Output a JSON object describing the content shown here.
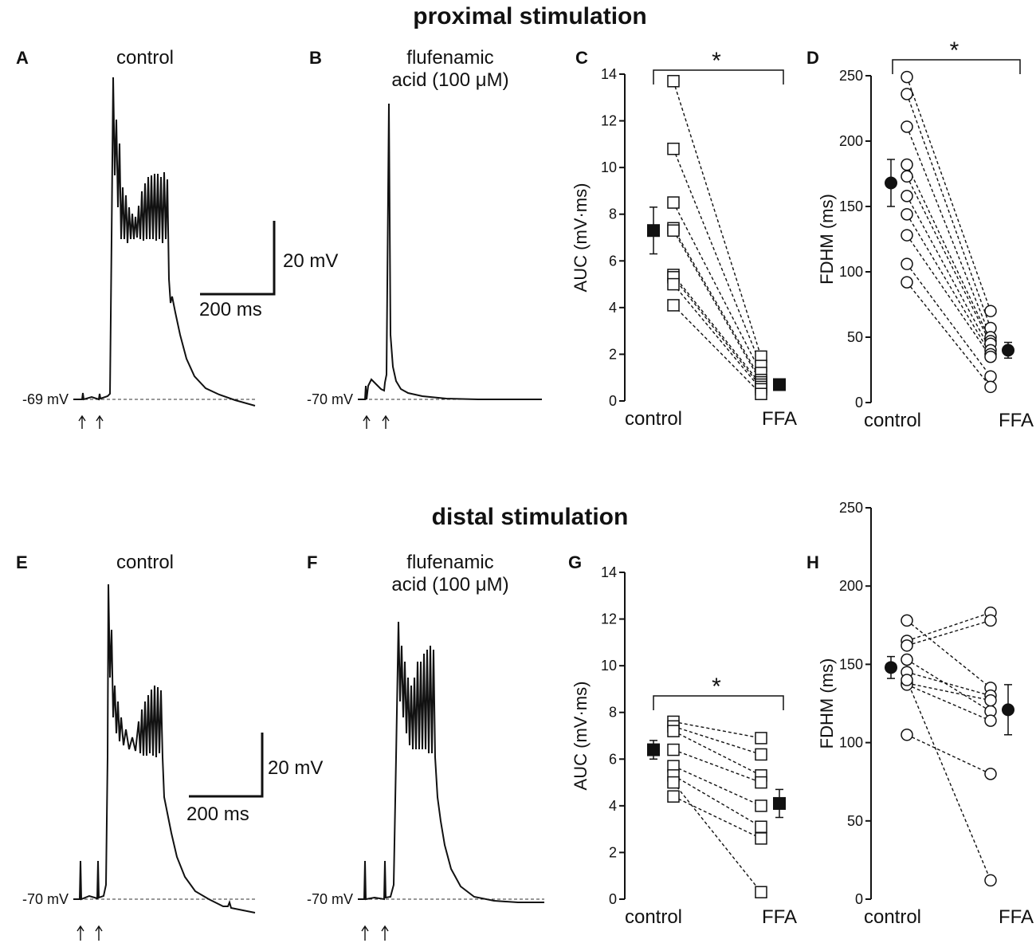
{
  "sections": {
    "proximal": {
      "title": "proximal stimulation"
    },
    "distal": {
      "title": "distal stimulation"
    }
  },
  "panels": {
    "A": {
      "label": "A",
      "condition": "control",
      "baseline": "-69 mV"
    },
    "B": {
      "label": "B",
      "condition_line1": "flufenamic",
      "condition_line2": "acid (100 μM)",
      "baseline": "-70 mV"
    },
    "E": {
      "label": "E",
      "condition": "control",
      "baseline": "-70 mV"
    },
    "F": {
      "label": "F",
      "condition_line1": "flufenamic",
      "condition_line2": "acid (100 μM)",
      "baseline": "-70 mV"
    }
  },
  "scale_bars": {
    "top": {
      "voltage": "20 mV",
      "time": "200 ms"
    },
    "bottom": {
      "voltage": "20 mV",
      "time": "200 ms"
    }
  },
  "chart_data": [
    {
      "panel": "C",
      "type": "scatter",
      "marker": "square",
      "ylabel": "AUC (mV·ms)",
      "categories": [
        "control",
        "FFA"
      ],
      "ylim": [
        0,
        14
      ],
      "yticks": [
        0,
        2,
        4,
        6,
        8,
        10,
        12,
        14
      ],
      "pairs": [
        [
          13.7,
          1.9
        ],
        [
          10.8,
          1.5
        ],
        [
          8.5,
          1.2
        ],
        [
          7.4,
          0.9
        ],
        [
          7.3,
          0.8
        ],
        [
          5.4,
          0.7
        ],
        [
          5.3,
          0.6
        ],
        [
          5.0,
          0.5
        ],
        [
          4.1,
          0.3
        ]
      ],
      "mean": {
        "control": 7.3,
        "FFA": 0.7
      },
      "err": {
        "control": 1.0,
        "FFA": 0.2
      },
      "significance": "*"
    },
    {
      "panel": "D",
      "type": "scatter",
      "marker": "circle",
      "ylabel": "FDHM (ms)",
      "categories": [
        "control",
        "FFA"
      ],
      "ylim": [
        0,
        250
      ],
      "yticks": [
        0,
        50,
        100,
        150,
        200,
        250
      ],
      "pairs": [
        [
          249,
          70
        ],
        [
          236,
          57
        ],
        [
          211,
          50
        ],
        [
          182,
          47
        ],
        [
          173,
          45
        ],
        [
          158,
          40
        ],
        [
          144,
          37
        ],
        [
          128,
          35
        ],
        [
          106,
          20
        ],
        [
          92,
          12
        ]
      ],
      "mean": {
        "control": 168,
        "FFA": 40
      },
      "err": {
        "control": 18,
        "FFA": 6
      },
      "significance": "*"
    },
    {
      "panel": "G",
      "type": "scatter",
      "marker": "square",
      "ylabel": "AUC (mV·ms)",
      "categories": [
        "control",
        "FFA"
      ],
      "ylim": [
        0,
        14
      ],
      "yticks": [
        0,
        2,
        4,
        6,
        8,
        10,
        12,
        14
      ],
      "pairs": [
        [
          7.6,
          6.9
        ],
        [
          7.4,
          6.2
        ],
        [
          7.2,
          5.3
        ],
        [
          6.4,
          5.0
        ],
        [
          5.7,
          4.0
        ],
        [
          5.3,
          3.1
        ],
        [
          5.0,
          0.3
        ],
        [
          4.4,
          2.6
        ]
      ],
      "mean": {
        "control": 6.4,
        "FFA": 4.1
      },
      "err": {
        "control": 0.4,
        "FFA": 0.6
      },
      "significance": "*"
    },
    {
      "panel": "H",
      "type": "scatter",
      "marker": "circle",
      "ylabel": "FDHM (ms)",
      "categories": [
        "control",
        "FFA"
      ],
      "ylim": [
        0,
        250
      ],
      "yticks": [
        0,
        50,
        100,
        150,
        200,
        250
      ],
      "pairs": [
        [
          178,
          135
        ],
        [
          165,
          183
        ],
        [
          162,
          178
        ],
        [
          153,
          120
        ],
        [
          145,
          130
        ],
        [
          138,
          127
        ],
        [
          137,
          114
        ],
        [
          105,
          80
        ],
        [
          140,
          12
        ]
      ],
      "mean": {
        "control": 148,
        "FFA": 121
      },
      "err": {
        "control": 7,
        "FFA": 16
      },
      "significance": ""
    }
  ]
}
